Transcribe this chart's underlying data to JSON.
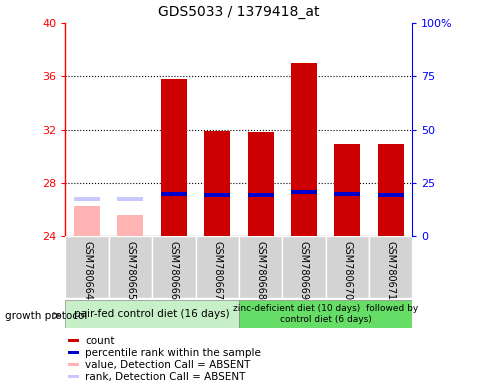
{
  "title": "GDS5033 / 1379418_at",
  "samples": [
    "GSM780664",
    "GSM780665",
    "GSM780666",
    "GSM780667",
    "GSM780668",
    "GSM780669",
    "GSM780670",
    "GSM780671"
  ],
  "count_values": [
    null,
    null,
    35.8,
    31.9,
    31.8,
    37.0,
    30.9,
    30.9
  ],
  "count_absent_values": [
    26.3,
    25.6,
    null,
    null,
    null,
    null,
    null,
    null
  ],
  "percentile_values": [
    null,
    null,
    27.2,
    27.1,
    27.1,
    27.3,
    27.2,
    27.1
  ],
  "percentile_absent_values": [
    26.8,
    26.8,
    null,
    null,
    null,
    null,
    null,
    null
  ],
  "ylim": [
    24,
    40
  ],
  "yticks": [
    24,
    28,
    32,
    36,
    40
  ],
  "y2ticks": [
    0,
    25,
    50,
    75,
    100
  ],
  "y2labels": [
    "0",
    "25",
    "50",
    "75",
    "100%"
  ],
  "group1_label": "pair-fed control diet (16 days)",
  "group2_label": "zinc-deficient diet (10 days)  followed by\ncontrol diet (6 days)",
  "group1_count": 4,
  "group2_count": 4,
  "growth_protocol_label": "growth protocol",
  "legend_items": [
    {
      "color": "#cc0000",
      "label": "count"
    },
    {
      "color": "#0000cc",
      "label": "percentile rank within the sample"
    },
    {
      "color": "#ffb3b3",
      "label": "value, Detection Call = ABSENT"
    },
    {
      "color": "#c8c8ff",
      "label": "rank, Detection Call = ABSENT"
    }
  ],
  "bar_width": 0.6,
  "count_color": "#cc0000",
  "percentile_color": "#0000cc",
  "absent_count_color": "#ffb3b3",
  "absent_rank_color": "#c8c8ff",
  "group1_bg": "#c8f0c8",
  "group2_bg": "#66dd66",
  "sample_bg": "#d3d3d3",
  "sample_border": "#ffffff",
  "percentile_bar_height": 0.3,
  "dotted_lines": [
    28,
    32,
    36
  ]
}
